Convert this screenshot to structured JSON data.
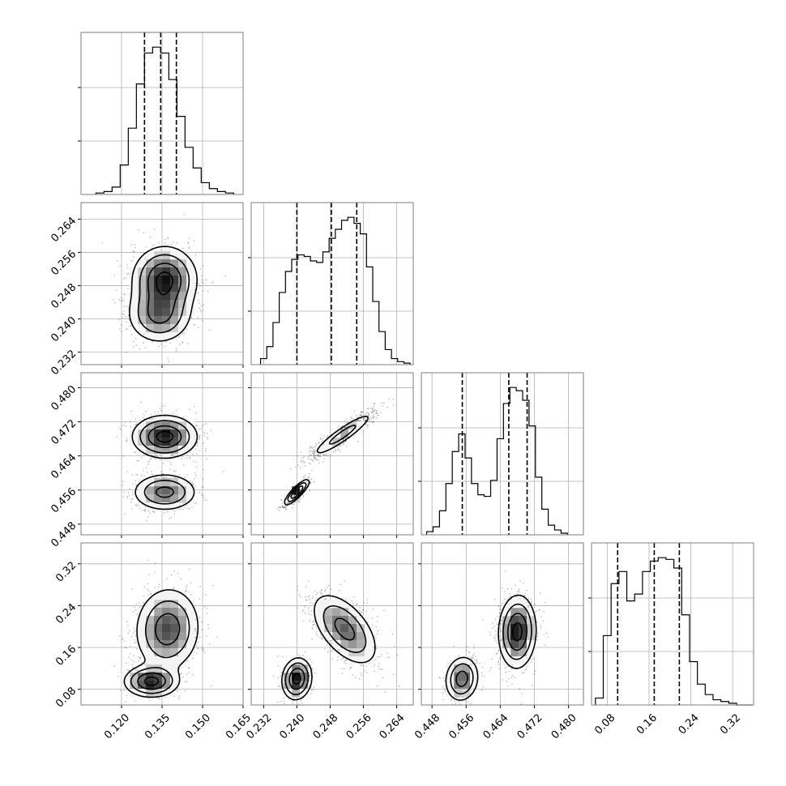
{
  "chart_data": {
    "type": "corner",
    "n_params": 4,
    "grid": true,
    "params": [
      {
        "range": [
          0.105,
          0.165
        ],
        "ticks": [
          0.12,
          0.135,
          0.15,
          0.165
        ],
        "tick_labels": [
          "0.120",
          "0.135",
          "0.150",
          "0.165"
        ]
      },
      {
        "range": [
          0.229,
          0.268
        ],
        "ticks": [
          0.232,
          0.24,
          0.248,
          0.256,
          0.264
        ],
        "tick_labels": [
          "0.232",
          "0.240",
          "0.248",
          "0.256",
          "0.264"
        ]
      },
      {
        "range": [
          0.4455,
          0.4835
        ],
        "ticks": [
          0.448,
          0.456,
          0.464,
          0.472,
          0.48
        ],
        "tick_labels": [
          "0.448",
          "0.456",
          "0.464",
          "0.472",
          "0.480"
        ]
      },
      {
        "range": [
          0.05,
          0.36
        ],
        "ticks": [
          0.08,
          0.16,
          0.24,
          0.32
        ],
        "tick_labels": [
          "0.08",
          "0.16",
          "0.24",
          "0.32"
        ]
      }
    ],
    "histograms": [
      {
        "x": [
          0.112,
          0.115,
          0.118,
          0.121,
          0.124,
          0.127,
          0.13,
          0.133,
          0.136,
          0.139,
          0.142,
          0.145,
          0.148,
          0.151,
          0.154,
          0.157,
          0.16
        ],
        "y": [
          1,
          2,
          5,
          20,
          45,
          75,
          96,
          100,
          96,
          78,
          53,
          32,
          18,
          8,
          4,
          2,
          1
        ],
        "quantiles": [
          0.1285,
          0.1345,
          0.1403
        ]
      },
      {
        "x": [
          0.232,
          0.2335,
          0.235,
          0.2365,
          0.238,
          0.2395,
          0.241,
          0.2425,
          0.244,
          0.2455,
          0.247,
          0.2485,
          0.25,
          0.2515,
          0.253,
          0.2545,
          0.256,
          0.2575,
          0.259,
          0.2605,
          0.262,
          0.2635,
          0.265,
          0.2665
        ],
        "y": [
          4,
          12,
          28,
          48,
          62,
          70,
          73,
          72,
          69,
          68,
          75,
          84,
          90,
          96,
          98,
          94,
          87,
          65,
          42,
          22,
          10,
          4,
          2,
          1
        ],
        "quantiles": [
          0.24,
          0.2483,
          0.2544
        ]
      },
      {
        "x": [
          0.4475,
          0.449,
          0.4505,
          0.452,
          0.4535,
          0.455,
          0.4565,
          0.458,
          0.4595,
          0.461,
          0.4625,
          0.464,
          0.4655,
          0.467,
          0.4685,
          0.47,
          0.4715,
          0.473,
          0.4745,
          0.476,
          0.4775,
          0.479
        ],
        "y": [
          2,
          5,
          15,
          32,
          52,
          63,
          48,
          32,
          25,
          24,
          34,
          60,
          82,
          92,
          90,
          84,
          68,
          36,
          16,
          6,
          3,
          1
        ],
        "quantiles": [
          0.4551,
          0.466,
          0.4703
        ]
      },
      {
        "x": [
          0.065,
          0.08,
          0.095,
          0.11,
          0.125,
          0.14,
          0.155,
          0.17,
          0.185,
          0.2,
          0.215,
          0.23,
          0.245,
          0.26,
          0.275,
          0.29,
          0.305,
          0.32,
          0.335,
          0.35
        ],
        "y": [
          4,
          40,
          70,
          77,
          60,
          64,
          77,
          83,
          85,
          84,
          79,
          52,
          25,
          12,
          6,
          3,
          2,
          1,
          0,
          0
        ],
        "quantiles": [
          0.1,
          0.17,
          0.218
        ]
      }
    ],
    "joint": [
      {
        "xi": 0,
        "yi": 1,
        "modes": [
          {
            "mx": 0.136,
            "my": 0.2495,
            "sx": 0.006,
            "sy": 0.004,
            "rho": 0.0,
            "w": 0.62
          },
          {
            "mx": 0.134,
            "my": 0.241,
            "sx": 0.006,
            "sy": 0.0035,
            "rho": 0.0,
            "w": 0.38
          }
        ]
      },
      {
        "xi": 0,
        "yi": 2,
        "modes": [
          {
            "mx": 0.136,
            "my": 0.4685,
            "sx": 0.006,
            "sy": 0.0025,
            "rho": 0.0,
            "w": 0.62
          },
          {
            "mx": 0.136,
            "my": 0.4555,
            "sx": 0.006,
            "sy": 0.0022,
            "rho": 0.0,
            "w": 0.38
          }
        ]
      },
      {
        "xi": 1,
        "yi": 2,
        "modes": [
          {
            "mx": 0.251,
            "my": 0.469,
            "sx": 0.004,
            "sy": 0.0028,
            "rho": 0.92,
            "w": 0.62
          },
          {
            "mx": 0.24,
            "my": 0.4555,
            "sx": 0.0015,
            "sy": 0.0015,
            "rho": 0.85,
            "w": 0.38
          }
        ]
      },
      {
        "xi": 0,
        "yi": 3,
        "modes": [
          {
            "mx": 0.137,
            "my": 0.195,
            "sx": 0.006,
            "sy": 0.04,
            "rho": 0.05,
            "w": 0.72
          },
          {
            "mx": 0.131,
            "my": 0.095,
            "sx": 0.005,
            "sy": 0.015,
            "rho": 0.0,
            "w": 0.28
          }
        ]
      },
      {
        "xi": 1,
        "yi": 3,
        "modes": [
          {
            "mx": 0.2515,
            "my": 0.195,
            "sx": 0.004,
            "sy": 0.035,
            "rho": -0.55,
            "w": 0.7
          },
          {
            "mx": 0.24,
            "my": 0.1,
            "sx": 0.0018,
            "sy": 0.02,
            "rho": 0.1,
            "w": 0.3
          }
        ]
      },
      {
        "xi": 2,
        "yi": 3,
        "modes": [
          {
            "mx": 0.468,
            "my": 0.19,
            "sx": 0.0022,
            "sy": 0.035,
            "rho": 0.05,
            "w": 0.7
          },
          {
            "mx": 0.455,
            "my": 0.1,
            "sx": 0.002,
            "sy": 0.022,
            "rho": 0.1,
            "w": 0.3
          }
        ]
      }
    ]
  }
}
